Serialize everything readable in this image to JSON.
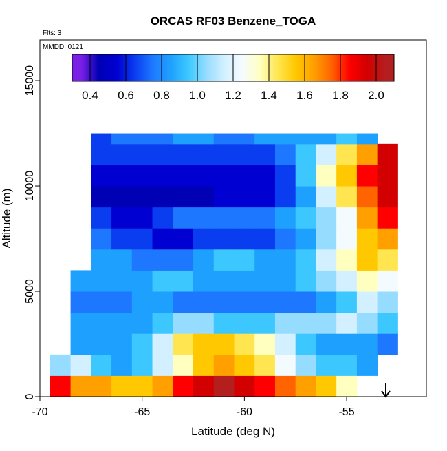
{
  "chart_data": {
    "type": "heatmap",
    "title": "ORCAS RF03 Benzene_TOGA",
    "annotations": [
      "Flts: 3",
      "MMDD: 0121"
    ],
    "x_label": "Latitude (deg N)",
    "y_label": "Altitude (m)",
    "xlim": [
      -70,
      -51.1
    ],
    "ylim": [
      0,
      16930
    ],
    "xticks": [
      -70,
      -65,
      -60,
      -55
    ],
    "yticks": [
      0,
      5000,
      10000,
      15000
    ],
    "x_bins": [
      -69.5,
      -68.5,
      -67.5,
      -66.5,
      -65.5,
      -64.5,
      -63.5,
      -62.5,
      -61.5,
      -60.5,
      -59.5,
      -58.5,
      -57.5,
      -56.5,
      -55.5,
      -54.5,
      -53.5,
      -52.5
    ],
    "y_bins": [
      0,
      1000,
      2000,
      3000,
      4000,
      5000,
      6000,
      7000,
      8000,
      9000,
      10000,
      11000,
      12000,
      12500
    ],
    "values": [
      [
        1.8,
        1.6,
        1.6,
        1.5,
        1.5,
        1.6,
        1.8,
        1.9,
        2.0,
        1.9,
        1.8,
        1.7,
        1.6,
        1.5,
        1.3,
        null,
        null
      ],
      [
        1.0,
        1.1,
        0.9,
        0.8,
        0.9,
        1.1,
        1.3,
        1.5,
        1.6,
        1.5,
        1.4,
        1.2,
        1.0,
        0.9,
        0.9,
        0.8,
        null
      ],
      [
        null,
        0.8,
        0.8,
        0.8,
        0.9,
        1.1,
        1.4,
        1.5,
        1.5,
        1.4,
        1.3,
        1.1,
        0.9,
        0.8,
        0.8,
        0.8,
        0.7
      ],
      [
        null,
        0.8,
        0.8,
        0.8,
        0.8,
        0.9,
        1.0,
        1.0,
        0.9,
        0.9,
        0.9,
        1.0,
        1.0,
        1.0,
        1.1,
        1.0,
        0.9
      ],
      [
        null,
        0.7,
        0.7,
        0.7,
        0.8,
        0.8,
        0.7,
        0.7,
        0.7,
        0.7,
        0.7,
        0.7,
        0.7,
        0.8,
        0.9,
        1.1,
        1.0
      ],
      [
        null,
        0.8,
        0.8,
        0.8,
        0.8,
        0.9,
        0.9,
        0.8,
        0.8,
        0.8,
        0.8,
        0.8,
        0.9,
        1.0,
        1.1,
        1.3,
        1.2
      ],
      [
        null,
        null,
        0.8,
        0.8,
        0.7,
        0.7,
        0.7,
        0.8,
        0.9,
        0.9,
        0.8,
        0.8,
        0.9,
        1.1,
        1.3,
        1.5,
        1.4
      ],
      [
        null,
        null,
        0.7,
        0.6,
        0.6,
        0.5,
        0.5,
        0.6,
        0.6,
        0.6,
        0.6,
        0.7,
        0.8,
        1.0,
        1.2,
        1.5,
        1.6
      ],
      [
        null,
        null,
        0.6,
        0.5,
        0.5,
        0.6,
        0.7,
        0.7,
        0.7,
        0.7,
        0.7,
        0.8,
        0.9,
        1.0,
        1.2,
        1.6,
        1.8
      ],
      [
        null,
        null,
        0.4,
        0.4,
        0.4,
        0.4,
        0.4,
        0.4,
        0.5,
        0.5,
        0.5,
        0.6,
        0.8,
        1.1,
        1.4,
        1.7,
        1.9
      ],
      [
        null,
        null,
        0.5,
        0.5,
        0.5,
        0.5,
        0.5,
        0.5,
        0.5,
        0.5,
        0.5,
        0.6,
        0.9,
        1.3,
        1.5,
        1.8,
        1.9
      ],
      [
        null,
        null,
        0.6,
        0.6,
        0.6,
        0.6,
        0.6,
        0.6,
        0.6,
        0.6,
        0.6,
        0.7,
        0.9,
        1.1,
        1.4,
        1.6,
        1.9
      ],
      [
        null,
        null,
        0.6,
        0.7,
        0.7,
        0.7,
        0.8,
        0.8,
        0.7,
        0.7,
        0.8,
        0.8,
        0.8,
        0.8,
        0.9,
        0.8,
        null
      ]
    ],
    "colorbar": {
      "zlim": [
        0.3,
        2.1
      ],
      "zticks": [
        0.4,
        0.6,
        0.8,
        {
          "value": 1,
          "label": "1.0"
        },
        1.2,
        1.4,
        1.6,
        1.8,
        {
          "value": 2,
          "label": "2.0"
        }
      ],
      "colors": [
        "#7a1fe6",
        "#0000b4",
        "#0000d2",
        "#0a3cf0",
        "#1e78ff",
        "#1ea0ff",
        "#3cc8ff",
        "#96dcff",
        "#d2f0ff",
        "#f4fbff",
        "#ffffc0",
        "#ffe650",
        "#ffc800",
        "#ffa000",
        "#ff6400",
        "#ff0000",
        "#d20000",
        "#b41e1e"
      ]
    }
  }
}
